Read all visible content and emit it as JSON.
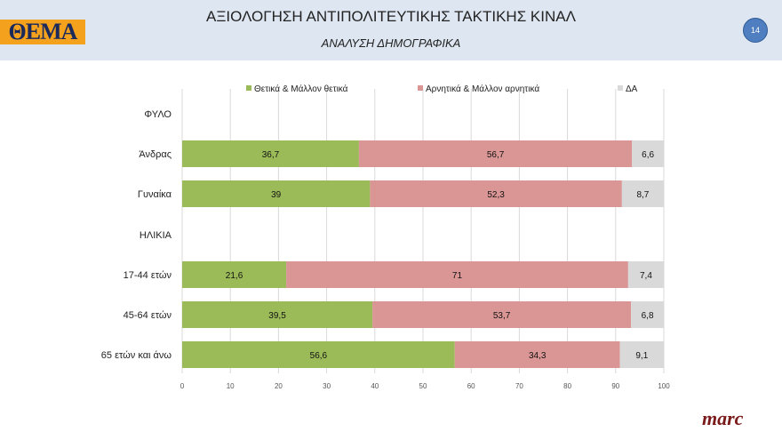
{
  "header": {
    "title": "ΑΞΙΟΛΟΓΗΣΗ ΑΝΤΙΠΟΛΙΤΕΥΤΙΚΗΣ ΤΑΚΤΙΚΗΣ ΚΙΝΑΛ",
    "subtitle": "ΑΝΑΛΥΣΗ ΔΗΜΟΓΡΑΦΙΚΑ",
    "logo": "ΘΕΜΑ",
    "page_number": "14"
  },
  "footer": {
    "brand": "marc"
  },
  "chart_data": {
    "type": "bar",
    "stacked": true,
    "orientation": "horizontal",
    "categories": [
      "ΦΥΛΟ",
      "Άνδρας",
      "Γυναίκα",
      "ΗΛΙΚΙΑ",
      "17-44 ετών",
      "45-64 ετών",
      "65 ετών και άνω"
    ],
    "series": [
      {
        "name": "Θετικά & Μάλλον θετικά",
        "color": "#9bbb59",
        "values": [
          null,
          36.7,
          39,
          null,
          21.6,
          39.5,
          56.6
        ],
        "labels": [
          "",
          "36,7",
          "39",
          "",
          "21,6",
          "39,5",
          "56,6"
        ]
      },
      {
        "name": "Αρνητικά & Μάλλον αρνητικά",
        "color": "#d99694",
        "values": [
          null,
          56.7,
          52.3,
          null,
          71,
          53.7,
          34.3
        ],
        "labels": [
          "",
          "56,7",
          "52,3",
          "",
          "71",
          "53,7",
          "34,3"
        ]
      },
      {
        "name": "ΔΑ",
        "color": "#d9d9d9",
        "values": [
          null,
          6.6,
          8.7,
          null,
          7.4,
          6.8,
          9.1
        ],
        "labels": [
          "",
          "6,6",
          "8,7",
          "",
          "7,4",
          "6,8",
          "9,1"
        ]
      }
    ],
    "xlim": [
      0,
      100
    ],
    "xticks": [
      "0",
      "10",
      "20",
      "30",
      "40",
      "50",
      "60",
      "70",
      "80",
      "90",
      "100"
    ],
    "grid": true,
    "legend": "top"
  }
}
